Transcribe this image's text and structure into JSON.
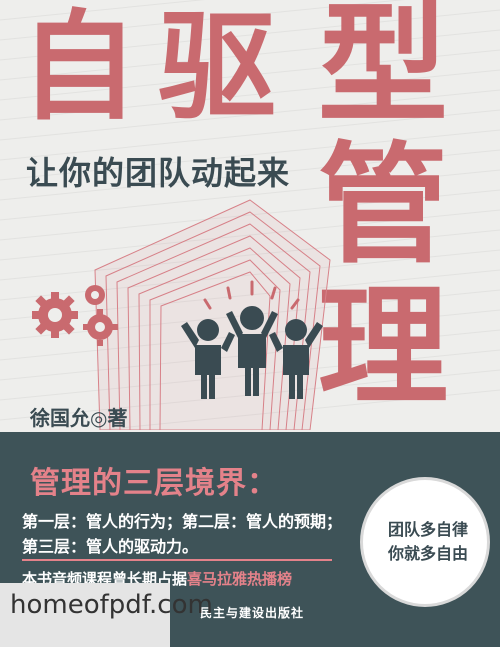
{
  "title": {
    "char1": "自",
    "char2": "驱",
    "char3": "型",
    "char4": "管",
    "char5": "理"
  },
  "subtitle": "让你的团队动起来",
  "author": "徐国允◎著",
  "bottom": {
    "heading": "管理的三层境界：",
    "line1": "第一层：管人的行为；第二层：管人的预期；",
    "line2": "第三层：管人的驱动力。",
    "promo_prefix": "本书音频课程曾长期占据",
    "promo_highlight": "喜马拉雅热播榜",
    "badge_line1": "团队多自律",
    "badge_line2": "你就多自由",
    "publisher": "民主与建设出版社"
  },
  "watermark": "homeofpdf.com",
  "colors": {
    "accent": "#c96a6f",
    "dark": "#3e5358",
    "highlight": "#e4828a",
    "icon": "#3a4b52"
  },
  "icons": [
    "gears-icon",
    "team-cheering-icon"
  ]
}
